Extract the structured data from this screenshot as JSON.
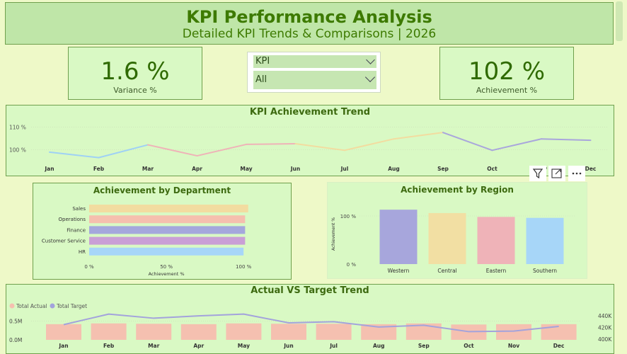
{
  "header": {
    "title": "KPI Performance Analysis",
    "subtitle": "Detailed KPI Trends & Comparisons | 2026"
  },
  "cards": {
    "variance": {
      "value": "1.6 %",
      "label": "Variance %"
    },
    "achievement": {
      "value": "102 %",
      "label": "Achievement %"
    }
  },
  "slicer": {
    "kpi_label": "KPI",
    "kpi_value": "All"
  },
  "hover_toolbar": {
    "filter_icon": "filter-icon",
    "focus_icon": "focus-mode-icon",
    "more_icon": "more-options-icon"
  },
  "chart_data": [
    {
      "type": "line",
      "title": "KPI Achievement Trend",
      "categories": [
        "Jan",
        "Feb",
        "Mar",
        "Apr",
        "May",
        "Jun",
        "Jul",
        "Aug",
        "Sep",
        "Oct",
        "Nov",
        "Dec"
      ],
      "values": [
        99.0,
        96.6,
        102.2,
        97.4,
        102.4,
        102.7,
        99.8,
        104.8,
        107.6,
        99.8,
        104.8,
        104.2
      ],
      "ytick_labels": [
        "100 %",
        "110 %"
      ],
      "ylim": [
        94,
        112
      ],
      "segment_colors": [
        "#9fd1f5",
        "#9fd1f5",
        "#efb3b8",
        "#efb3b8",
        "#efb3b8",
        "#f2dca0",
        "#f2dca0",
        "#f2dca0",
        "#a9a6dc",
        "#a9a6dc",
        "#a9a6dc"
      ]
    },
    {
      "type": "bar",
      "title": "Achievement by Department",
      "orientation": "horizontal",
      "categories": [
        "Sales",
        "Operations",
        "Finance",
        "Customer Service",
        "HR"
      ],
      "values": [
        103,
        101,
        101,
        101,
        100
      ],
      "colors": [
        "#f2dca0",
        "#f5bfae",
        "#a4a7dc",
        "#c99fd6",
        "#a7d6f8"
      ],
      "xtick_labels": [
        "0 %",
        "50 %",
        "100 %"
      ],
      "xlabel": "Achievement %",
      "xlim": [
        0,
        110
      ]
    },
    {
      "type": "bar",
      "title": "Achievement by Region",
      "categories": [
        "Western",
        "Central",
        "Eastern",
        "Southern"
      ],
      "values": [
        113,
        106,
        98,
        96
      ],
      "colors": [
        "#a7a6dc",
        "#f2dfa3",
        "#efb3b8",
        "#a7d6f8"
      ],
      "ytick_labels": [
        "0 %",
        "100 %"
      ],
      "ylabel": "Achievement %",
      "ylim": [
        0,
        125
      ]
    },
    {
      "type": "bar+line",
      "title": "Actual VS Target Trend",
      "categories": [
        "Jan",
        "Feb",
        "Mar",
        "Apr",
        "May",
        "Jun",
        "Jul",
        "Aug",
        "Sep",
        "Oct",
        "Nov",
        "Dec"
      ],
      "series": [
        {
          "name": "Total Actual",
          "type": "bar",
          "axis": "left",
          "color": "#f5c0b0",
          "values": [
            0.42,
            0.44,
            0.43,
            0.42,
            0.44,
            0.43,
            0.43,
            0.42,
            0.44,
            0.41,
            0.42,
            0.42
          ]
        },
        {
          "name": "Total Target",
          "type": "line",
          "axis": "right",
          "color": "#a3a3dc",
          "values": [
            425,
            443,
            436,
            440,
            443,
            428,
            430,
            421,
            424,
            413,
            414,
            422
          ]
        }
      ],
      "left_ticks": [
        "0.0M",
        "0.5M"
      ],
      "left_ylim": [
        0,
        0.72
      ],
      "right_ticks": [
        "400K",
        "420K",
        "440K"
      ],
      "right_ylim": [
        399,
        445
      ]
    }
  ]
}
